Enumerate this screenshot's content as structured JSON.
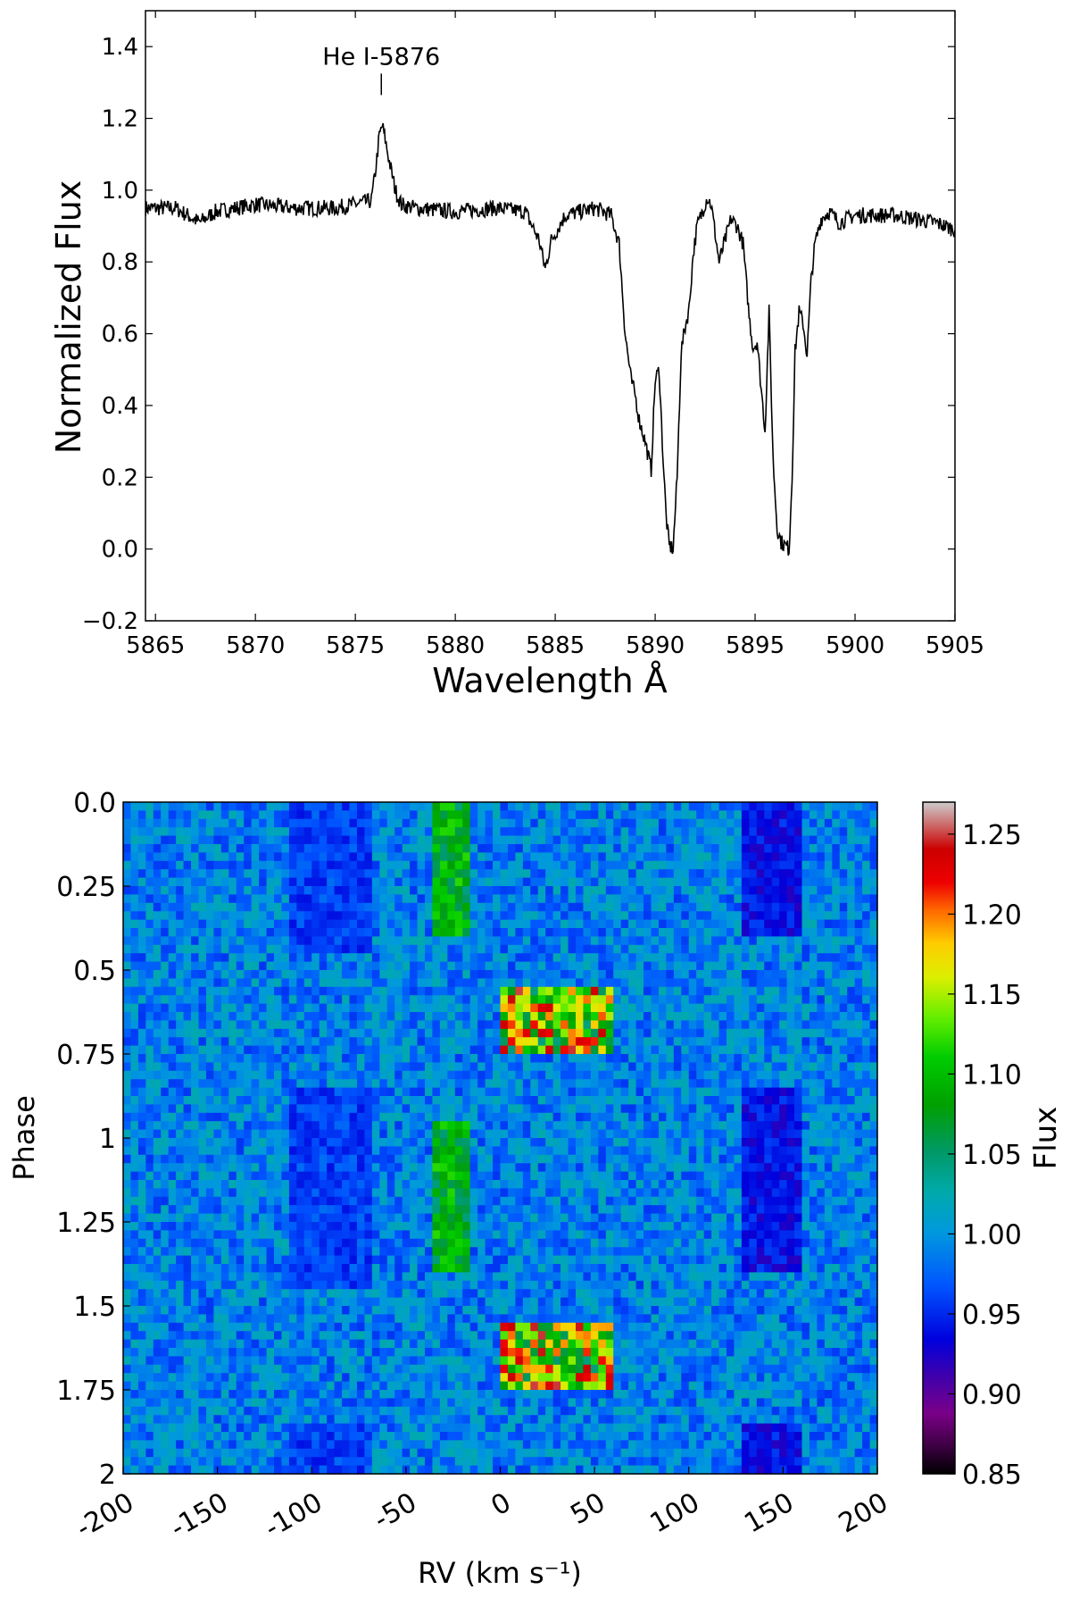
{
  "chart_data": [
    {
      "type": "line",
      "xlabel": "Wavelength Å",
      "ylabel": "Normalized Flux",
      "xlim": [
        5864.5,
        5905
      ],
      "ylim": [
        -0.2,
        1.5
      ],
      "xticks": [
        5865,
        5870,
        5875,
        5880,
        5885,
        5890,
        5895,
        5900,
        5905
      ],
      "yticks": [
        -0.2,
        0.0,
        0.2,
        0.4,
        0.6,
        0.8,
        1.0,
        1.2,
        1.4
      ],
      "xtick_labels": [
        "5865",
        "5870",
        "5875",
        "5880",
        "5885",
        "5890",
        "5895",
        "5900",
        "5905"
      ],
      "ytick_labels": [
        "−0.2",
        "0.0",
        "0.2",
        "0.4",
        "0.6",
        "0.8",
        "1.0",
        "1.2",
        "1.4"
      ],
      "annotation": {
        "text": "He I-5876",
        "x": 5876.3,
        "y": 1.28
      },
      "grid": false,
      "series": [
        {
          "x": [
            5864.5,
            5866.0,
            5867.2,
            5868.0,
            5870.0,
            5872.0,
            5874.0,
            5875.8,
            5876.0,
            5876.2,
            5876.35,
            5876.5,
            5876.7,
            5877.0,
            5877.3,
            5878.0,
            5880.0,
            5882.0,
            5883.5,
            5884.2,
            5884.5,
            5884.8,
            5885.5,
            5887.0,
            5887.8,
            5888.2,
            5888.5,
            5888.8,
            5889.0,
            5889.2,
            5889.5,
            5889.8,
            5890.0,
            5890.2,
            5890.4,
            5890.55,
            5890.7,
            5890.9,
            5891.1,
            5891.3,
            5891.5,
            5891.7,
            5891.9,
            5892.1,
            5892.3,
            5892.6,
            5892.8,
            5893.0,
            5893.2,
            5893.5,
            5893.8,
            5894.1,
            5894.4,
            5894.7,
            5894.9,
            5895.1,
            5895.3,
            5895.5,
            5895.7,
            5895.9,
            5896.1,
            5896.3,
            5896.5,
            5896.7,
            5896.85,
            5897.0,
            5897.2,
            5897.4,
            5897.6,
            5897.8,
            5898.0,
            5898.3,
            5898.7,
            5899.2,
            5900.0,
            5902.0,
            5904.0,
            5905.0
          ],
          "y": [
            0.95,
            0.95,
            0.91,
            0.94,
            0.96,
            0.95,
            0.95,
            0.97,
            1.05,
            1.15,
            1.18,
            1.14,
            1.08,
            1.0,
            0.96,
            0.95,
            0.94,
            0.95,
            0.94,
            0.86,
            0.78,
            0.86,
            0.93,
            0.95,
            0.93,
            0.85,
            0.6,
            0.47,
            0.43,
            0.36,
            0.3,
            0.22,
            0.47,
            0.5,
            0.25,
            0.09,
            0.01,
            0.0,
            0.2,
            0.55,
            0.62,
            0.67,
            0.82,
            0.9,
            0.93,
            0.98,
            0.96,
            0.88,
            0.8,
            0.86,
            0.92,
            0.9,
            0.85,
            0.65,
            0.56,
            0.58,
            0.45,
            0.33,
            0.66,
            0.25,
            0.06,
            0.02,
            0.01,
            0.0,
            0.2,
            0.55,
            0.66,
            0.63,
            0.54,
            0.75,
            0.85,
            0.92,
            0.94,
            0.91,
            0.93,
            0.93,
            0.91,
            0.89
          ]
        }
      ]
    },
    {
      "type": "heatmap",
      "xlabel": "RV (km s⁻¹)",
      "ylabel": "Phase",
      "xlim": [
        -200,
        200
      ],
      "ylim": [
        0,
        2
      ],
      "xticks": [
        -200,
        -150,
        -100,
        -50,
        0,
        50,
        100,
        150,
        200
      ],
      "xtick_labels": [
        "-200",
        "-150",
        "-100",
        "-50",
        "0",
        "50",
        "100",
        "150",
        "200"
      ],
      "yticks": [
        0,
        0.25,
        0.5,
        0.75,
        1,
        1.25,
        1.5,
        1.75,
        2
      ],
      "ytick_labels": [
        "0.0",
        "0.25",
        "0.5",
        "0.75",
        "1",
        "1.25",
        "1.5",
        "1.75",
        "2"
      ],
      "colorbar": {
        "label": "Flux",
        "range": [
          0.85,
          1.27
        ],
        "ticks": [
          0.85,
          0.9,
          0.95,
          1.0,
          1.05,
          1.1,
          1.15,
          1.2,
          1.25
        ],
        "tick_labels": [
          "0.85",
          "0.90",
          "0.95",
          "1.00",
          "1.05",
          "1.10",
          "1.15",
          "1.20",
          "1.25"
        ]
      },
      "features": [
        {
          "kind": "absorption-trail",
          "rv_range": [
            -110,
            -70
          ],
          "phase_ranges": [
            [
              0,
              0.45
            ],
            [
              0.85,
              1.45
            ],
            [
              1.85,
              2
            ]
          ],
          "min_flux": 0.9
        },
        {
          "kind": "absorption-trail",
          "rv_range": [
            130,
            160
          ],
          "phase_ranges": [
            [
              0,
              0.4
            ],
            [
              0.85,
              1.4
            ],
            [
              1.85,
              2
            ]
          ],
          "min_flux": 0.88
        },
        {
          "kind": "emission-trail",
          "rv_range": [
            -35,
            -15
          ],
          "phase_ranges": [
            [
              0,
              0.4
            ],
            [
              0.95,
              1.4
            ]
          ],
          "max_flux": 1.12
        },
        {
          "kind": "emission-trail",
          "rv_range": [
            0,
            60
          ],
          "phase_ranges": [
            [
              0.55,
              0.75
            ],
            [
              1.55,
              1.75
            ]
          ],
          "max_flux": 1.25
        }
      ],
      "grid": false
    }
  ]
}
